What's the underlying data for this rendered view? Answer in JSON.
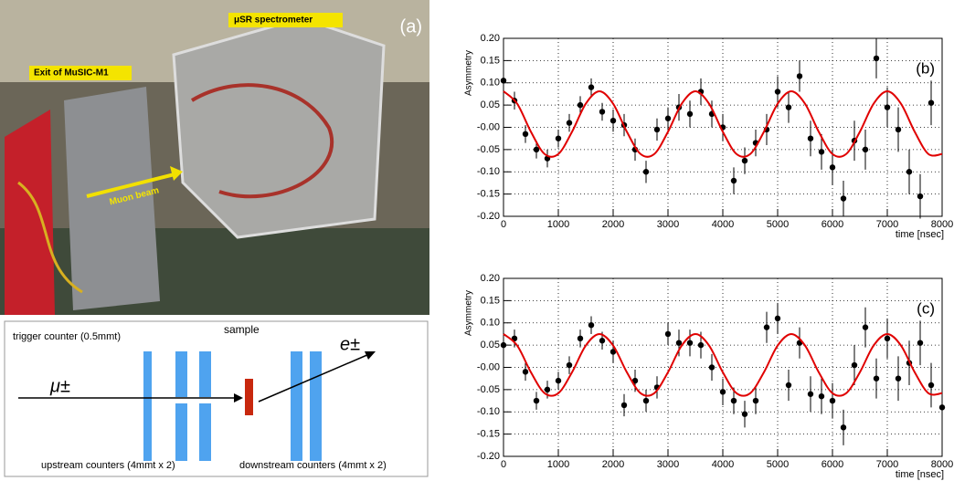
{
  "photo": {
    "label_panel": "(a)",
    "label_spectrometer": "μSR spectrometer",
    "label_exit": "Exit of MuSIC-M1",
    "label_beam": "Muon beam"
  },
  "diagram": {
    "trigger": "trigger counter (0.5mmt)",
    "sample": "sample",
    "muon": "μ±",
    "positron": "e±",
    "upstream": "upstream counters (4mmt x 2)",
    "downstream": "downstream counters (4mmt x 2)"
  },
  "chart_data": [
    {
      "type": "scatter",
      "label": "(b)",
      "y_label": "Asymmetry",
      "x_label": "time [nsec]",
      "color": "#000000",
      "grid": true,
      "xlim": [
        0,
        8000
      ],
      "xticks": [
        0,
        1000,
        2000,
        3000,
        4000,
        5000,
        6000,
        7000,
        8000
      ],
      "ylim": [
        -0.2,
        0.2
      ],
      "yticks": [
        {
          "value": 0.2,
          "label": "0.20"
        },
        {
          "value": 0.15,
          "label": "0.15"
        },
        {
          "value": 0.1,
          "label": "0.10"
        },
        {
          "value": 0.05,
          "label": "0.05"
        },
        {
          "value": 0,
          "label": "-0.00"
        },
        {
          "value": -0.05,
          "label": "-0.05"
        },
        {
          "value": -0.1,
          "label": "-0.10"
        },
        {
          "value": -0.15,
          "label": "-0.15"
        },
        {
          "value": -0.2,
          "label": "-0.20"
        }
      ],
      "x": [
        0,
        200,
        400,
        600,
        800,
        1000,
        1200,
        1400,
        1600,
        1800,
        2000,
        2200,
        2400,
        2600,
        2800,
        3000,
        3200,
        3400,
        3600,
        3800,
        4000,
        4200,
        4400,
        4600,
        4800,
        5000,
        5200,
        5400,
        5600,
        5800,
        6000,
        6200,
        6400,
        6600,
        6800,
        7000,
        7200,
        7400,
        7600,
        7800
      ],
      "values": [
        0.105,
        0.06,
        -0.015,
        -0.05,
        -0.07,
        -0.025,
        0.01,
        0.05,
        0.09,
        0.035,
        0.015,
        0.005,
        -0.05,
        -0.1,
        -0.005,
        0.02,
        0.045,
        0.03,
        0.08,
        0.03,
        0.0,
        -0.12,
        -0.075,
        -0.035,
        -0.005,
        0.08,
        0.045,
        0.115,
        -0.025,
        -0.055,
        -0.09,
        -0.16,
        -0.03,
        -0.05,
        0.155,
        0.045,
        -0.005,
        -0.1,
        -0.155,
        0.055
      ],
      "errors": [
        0.02,
        0.02,
        0.02,
        0.02,
        0.02,
        0.02,
        0.02,
        0.02,
        0.02,
        0.02,
        0.025,
        0.025,
        0.025,
        0.025,
        0.025,
        0.025,
        0.03,
        0.03,
        0.03,
        0.03,
        0.03,
        0.03,
        0.03,
        0.03,
        0.035,
        0.035,
        0.035,
        0.035,
        0.04,
        0.04,
        0.04,
        0.04,
        0.045,
        0.045,
        0.045,
        0.045,
        0.05,
        0.05,
        0.05,
        0.05
      ],
      "fit": {
        "color": "#e00000",
        "x": [
          0,
          250,
          500,
          750,
          1000,
          1250,
          1500,
          1750,
          2000,
          2250,
          2500,
          2750,
          3000,
          3250,
          3500,
          3750,
          4000,
          4250,
          4500,
          4750,
          5000,
          5250,
          5500,
          5750,
          6000,
          6250,
          6500,
          6750,
          7000,
          7250,
          7500,
          7750,
          8000
        ],
        "values": [
          0.081,
          0.053,
          -0.01,
          -0.06,
          -0.06,
          -0.01,
          0.053,
          0.081,
          0.053,
          -0.01,
          -0.06,
          -0.06,
          -0.01,
          0.053,
          0.081,
          0.053,
          -0.01,
          -0.06,
          -0.06,
          -0.01,
          0.053,
          0.081,
          0.053,
          -0.01,
          -0.06,
          -0.06,
          -0.01,
          0.053,
          0.081,
          0.053,
          -0.01,
          -0.06,
          -0.06
        ]
      }
    },
    {
      "type": "scatter",
      "label": "(c)",
      "y_label": "Asymmetry",
      "x_label": "time [nsec]",
      "color": "#000000",
      "grid": true,
      "xlim": [
        0,
        8000
      ],
      "xticks": [
        0,
        1000,
        2000,
        3000,
        4000,
        5000,
        6000,
        7000,
        8000
      ],
      "ylim": [
        -0.2,
        0.2
      ],
      "yticks": [
        {
          "value": 0.2,
          "label": "0.20"
        },
        {
          "value": 0.15,
          "label": "0.15"
        },
        {
          "value": 0.1,
          "label": "0.10"
        },
        {
          "value": 0.05,
          "label": "0.05"
        },
        {
          "value": 0,
          "label": "-0.00"
        },
        {
          "value": -0.05,
          "label": "-0.05"
        },
        {
          "value": -0.1,
          "label": "-0.10"
        },
        {
          "value": -0.15,
          "label": "-0.15"
        },
        {
          "value": -0.2,
          "label": "-0.20"
        }
      ],
      "x": [
        0,
        200,
        400,
        600,
        800,
        1000,
        1200,
        1400,
        1600,
        1800,
        2000,
        2200,
        2400,
        2600,
        2800,
        3000,
        3200,
        3400,
        3600,
        3800,
        4000,
        4200,
        4400,
        4600,
        4800,
        5000,
        5200,
        5400,
        5600,
        5800,
        6000,
        6200,
        6400,
        6600,
        6800,
        7000,
        7200,
        7400,
        7600,
        7800,
        8000
      ],
      "values": [
        0.05,
        0.065,
        -0.01,
        -0.075,
        -0.05,
        -0.03,
        0.005,
        0.065,
        0.095,
        0.06,
        0.035,
        -0.085,
        -0.03,
        -0.075,
        -0.045,
        0.075,
        0.055,
        0.055,
        0.05,
        0.0,
        -0.055,
        -0.075,
        -0.105,
        -0.075,
        0.09,
        0.11,
        -0.04,
        0.055,
        -0.06,
        -0.065,
        -0.075,
        -0.135,
        0.005,
        0.09,
        -0.025,
        0.065,
        -0.025,
        0.01,
        0.055,
        -0.04,
        -0.09
      ],
      "errors": [
        0.02,
        0.02,
        0.02,
        0.02,
        0.02,
        0.02,
        0.02,
        0.02,
        0.02,
        0.02,
        0.025,
        0.025,
        0.025,
        0.025,
        0.025,
        0.025,
        0.03,
        0.03,
        0.03,
        0.03,
        0.03,
        0.03,
        0.03,
        0.03,
        0.035,
        0.035,
        0.035,
        0.035,
        0.04,
        0.04,
        0.04,
        0.04,
        0.045,
        0.045,
        0.045,
        0.045,
        0.05,
        0.05,
        0.05,
        0.05,
        0.05
      ],
      "fit": {
        "color": "#e00000",
        "x": [
          0,
          250,
          500,
          750,
          1000,
          1250,
          1500,
          1750,
          2000,
          2250,
          2500,
          2750,
          3000,
          3250,
          3500,
          3750,
          4000,
          4250,
          4500,
          4750,
          5000,
          5250,
          5500,
          5750,
          6000,
          6250,
          6500,
          6750,
          7000,
          7250,
          7500,
          7750,
          8000
        ],
        "values": [
          0.075,
          0.049,
          -0.011,
          -0.058,
          -0.058,
          -0.011,
          0.049,
          0.075,
          0.049,
          -0.011,
          -0.058,
          -0.058,
          -0.011,
          0.049,
          0.075,
          0.049,
          -0.011,
          -0.058,
          -0.058,
          -0.011,
          0.049,
          0.075,
          0.049,
          -0.011,
          -0.058,
          -0.058,
          -0.011,
          0.049,
          0.075,
          0.049,
          -0.011,
          -0.058,
          -0.058
        ]
      }
    }
  ]
}
